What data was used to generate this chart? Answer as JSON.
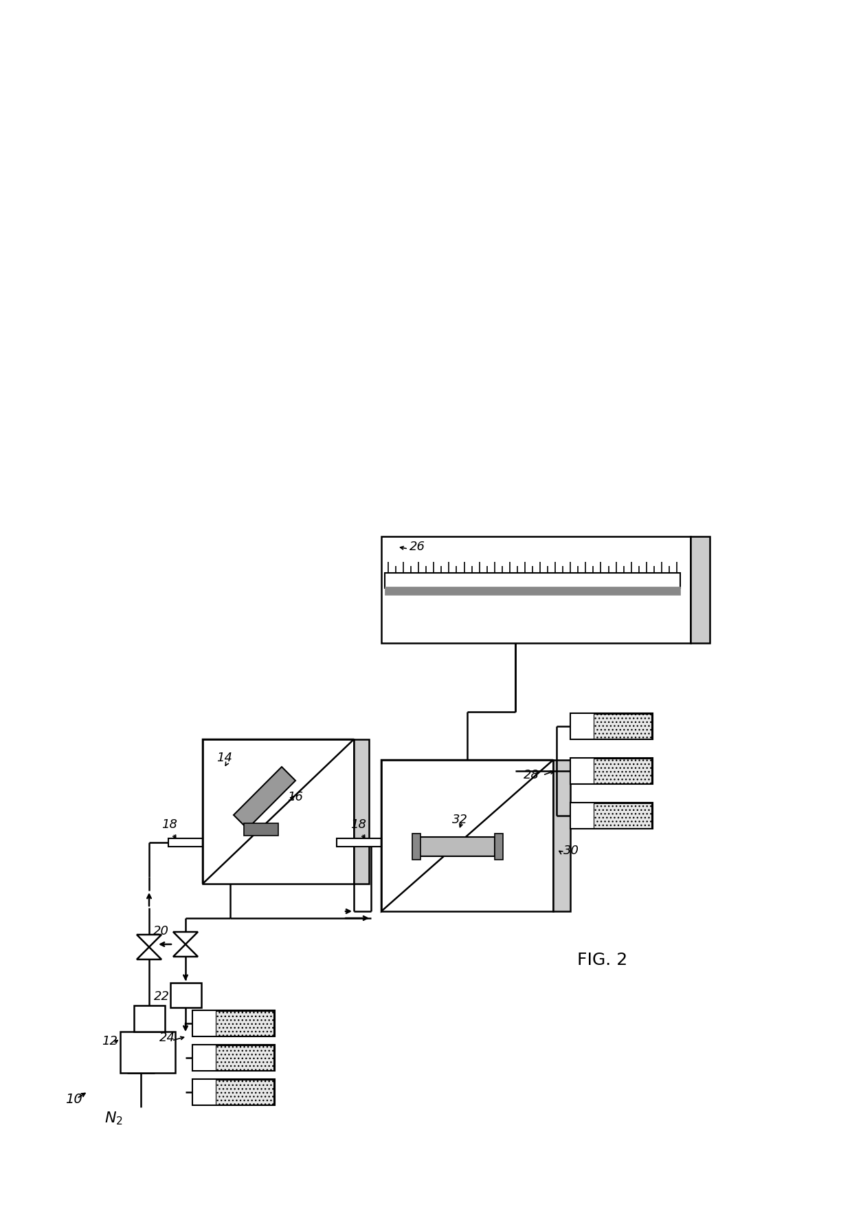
{
  "bg_color": "#ffffff",
  "line_color": "#000000",
  "lw": 1.8,
  "fig_w": 12.4,
  "fig_h": 17.56,
  "dpi": 100
}
